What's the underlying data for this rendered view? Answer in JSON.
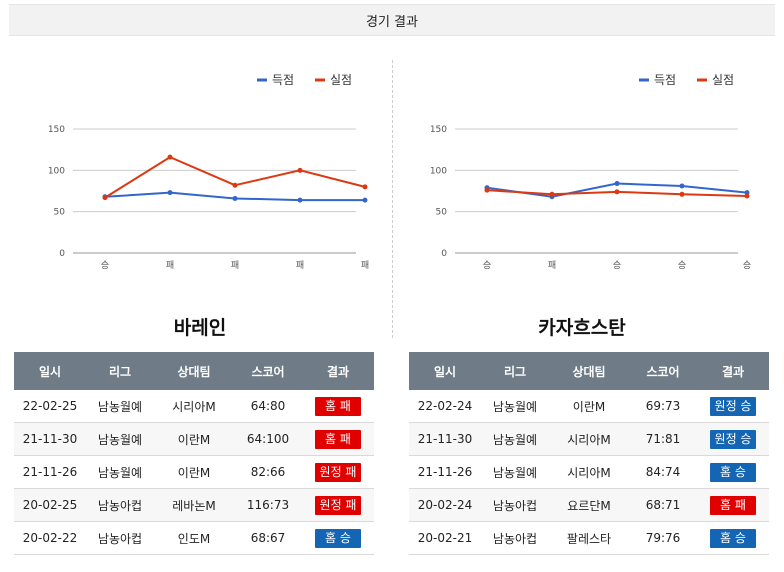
{
  "header": {
    "title": "경기 결과"
  },
  "colors": {
    "scored": "#3366cc",
    "conceded": "#dc3912",
    "win_badge": "#1565b5",
    "loss_badge": "#e00000",
    "table_header": "#6f7b86"
  },
  "legend": {
    "scored": "득점",
    "conceded": "실점"
  },
  "table_headers": [
    "일시",
    "리그",
    "상대팀",
    "스코어",
    "결과"
  ],
  "teams": [
    {
      "name": "바레인",
      "chart_data": {
        "type": "line",
        "categories": [
          "승",
          "패",
          "패",
          "패",
          "패"
        ],
        "series": [
          {
            "name": "득점",
            "values": [
              68,
              73,
              66,
              64,
              64
            ]
          },
          {
            "name": "실점",
            "values": [
              67,
              116,
              82,
              100,
              80
            ]
          }
        ],
        "yticks": [
          0,
          50,
          100,
          150
        ],
        "ylim": [
          0,
          150
        ],
        "grid": true,
        "legend": "top-right"
      },
      "matches": [
        {
          "date": "22-02-25",
          "league": "남농월예",
          "opponent": "시리아M",
          "score": "64:80",
          "result": "홈 패",
          "win": false
        },
        {
          "date": "21-11-30",
          "league": "남농월예",
          "opponent": "이란M",
          "score": "64:100",
          "result": "홈 패",
          "win": false
        },
        {
          "date": "21-11-26",
          "league": "남농월예",
          "opponent": "이란M",
          "score": "82:66",
          "result": "원정 패",
          "win": false
        },
        {
          "date": "20-02-25",
          "league": "남농아컵",
          "opponent": "레바논M",
          "score": "116:73",
          "result": "원정 패",
          "win": false
        },
        {
          "date": "20-02-22",
          "league": "남농아컵",
          "opponent": "인도M",
          "score": "68:67",
          "result": "홈 승",
          "win": true
        }
      ]
    },
    {
      "name": "카자흐스탄",
      "chart_data": {
        "type": "line",
        "categories": [
          "승",
          "패",
          "승",
          "승",
          "승"
        ],
        "series": [
          {
            "name": "득점",
            "values": [
              79,
              68,
              84,
              81,
              73
            ]
          },
          {
            "name": "실점",
            "values": [
              76,
              71,
              74,
              71,
              69
            ]
          }
        ],
        "yticks": [
          0,
          50,
          100,
          150
        ],
        "ylim": [
          0,
          150
        ],
        "grid": true,
        "legend": "top-right"
      },
      "matches": [
        {
          "date": "22-02-24",
          "league": "남농월예",
          "opponent": "이란M",
          "score": "69:73",
          "result": "원정 승",
          "win": true
        },
        {
          "date": "21-11-30",
          "league": "남농월예",
          "opponent": "시리아M",
          "score": "71:81",
          "result": "원정 승",
          "win": true
        },
        {
          "date": "21-11-26",
          "league": "남농월예",
          "opponent": "시리아M",
          "score": "84:74",
          "result": "홈 승",
          "win": true
        },
        {
          "date": "20-02-24",
          "league": "남농아컵",
          "opponent": "요르단M",
          "score": "68:71",
          "result": "홈 패",
          "win": false
        },
        {
          "date": "20-02-21",
          "league": "남농아컵",
          "opponent": "팔레스타",
          "score": "79:76",
          "result": "홈 승",
          "win": true
        }
      ]
    }
  ]
}
